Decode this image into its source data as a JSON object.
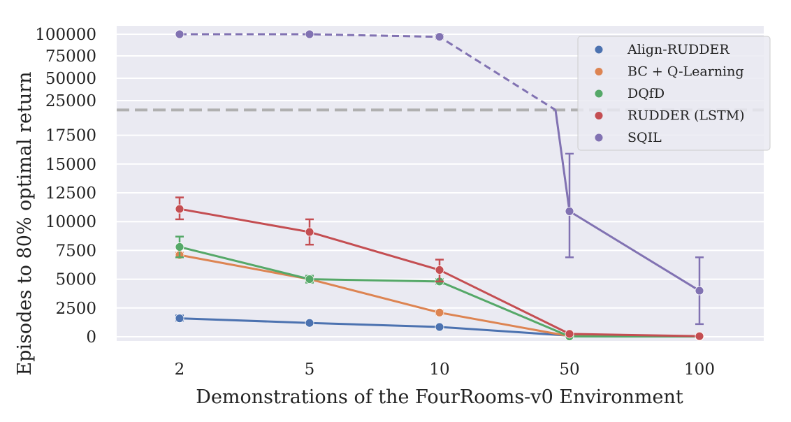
{
  "chart_data": {
    "type": "line",
    "xlabel": "Demonstrations of the FourRooms-v0 Environment",
    "ylabel": "Episodes to 80% optimal return",
    "categories": [
      "2",
      "5",
      "10",
      "50",
      "100"
    ],
    "y_ticks_lower": [
      "0",
      "2500",
      "5000",
      "7500",
      "10000",
      "12500",
      "15000",
      "17500"
    ],
    "y_ticks_upper": [
      "25000",
      "50000",
      "75000",
      "100000"
    ],
    "y_scale": "broken: linear 0–20000 below the dashed line, compressed 25000–100000 above it",
    "reference_line": {
      "value": 20000,
      "style": "dashed",
      "color": "#b0b0b0"
    },
    "grid": true,
    "legend_position": "top-right",
    "series": [
      {
        "name": "Align-RUDDER",
        "color": "#4c72b0",
        "values": [
          1600,
          1200,
          850,
          100,
          50
        ],
        "err_low": [
          1400,
          1150,
          800,
          80,
          40
        ],
        "err_high": [
          1850,
          1250,
          900,
          120,
          60
        ]
      },
      {
        "name": "BC + Q-Learning",
        "color": "#dd8452",
        "values": [
          7100,
          5000,
          2100,
          50,
          30
        ],
        "err_low": [
          6900,
          4850,
          1950,
          30,
          20
        ],
        "err_high": [
          7300,
          5150,
          2250,
          80,
          50
        ]
      },
      {
        "name": "DQfD",
        "color": "#55a868",
        "values": [
          7800,
          5000,
          4800,
          30,
          20
        ],
        "err_low": [
          6900,
          4700,
          4600,
          10,
          10
        ],
        "err_high": [
          8700,
          5300,
          5000,
          60,
          40
        ]
      },
      {
        "name": "RUDDER (LSTM)",
        "color": "#c44e52",
        "values": [
          11100,
          9100,
          5800,
          250,
          50
        ],
        "err_low": [
          10200,
          8000,
          4800,
          150,
          30
        ],
        "err_high": [
          12100,
          10200,
          6700,
          350,
          70
        ]
      },
      {
        "name": "SQIL",
        "color": "#8172b2",
        "values": [
          100000,
          100000,
          97000,
          10900,
          4000
        ],
        "err_low": [
          100000,
          100000,
          95000,
          6900,
          1100
        ],
        "err_high": [
          100000,
          100000,
          99000,
          15900,
          6900
        ],
        "note": "line drawn dashed while above 20000"
      }
    ]
  }
}
